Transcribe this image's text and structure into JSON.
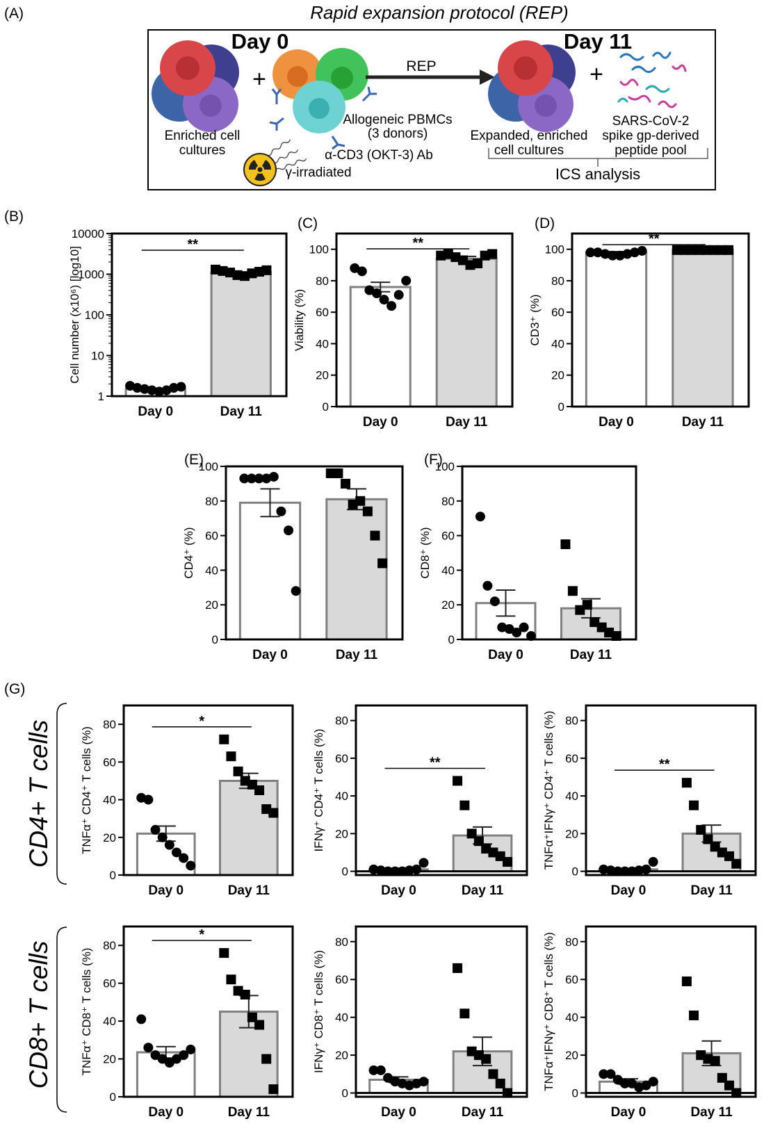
{
  "figure": {
    "panel_labels": [
      "(A)",
      "(B)",
      "(C)",
      "(D)",
      "(E)",
      "(F)",
      "(G)"
    ],
    "row_labels": [
      "CD4+ T cells",
      "CD8+ T cells"
    ]
  },
  "schematic": {
    "title": "Rapid expansion protocol (REP)",
    "day0": "Day 0",
    "day11": "Day 11",
    "plus1": "+",
    "plus2": "+",
    "arrow_label": "REP",
    "enriched": [
      "Enriched cell",
      "cultures"
    ],
    "allogeneic": [
      "Allogeneic PBMCs",
      "(3 donors)"
    ],
    "antibody": "α-CD3 (OKT-3) Ab",
    "irradiated": "γ-irradiated",
    "expanded": [
      "Expanded, enriched",
      "cell cultures"
    ],
    "spike": [
      "SARS-CoV-2",
      "spike gp-derived",
      "peptide pool"
    ],
    "ics": "ICS analysis"
  },
  "colors": {
    "cell_red": "#d9464a",
    "cell_navy": "#3f3f8f",
    "cell_blue": "#3e64a8",
    "cell_purple": "#8c68c6",
    "cell_orange": "#ef9240",
    "cell_green": "#42c25a",
    "cell_teal": "#6fd2d2",
    "antibody": "#3c64b4",
    "peptide_blue": "#2474c0",
    "peptide_magenta": "#c83c9c",
    "peptide_teal": "#28a8b0",
    "bar_day11": "#d9d9d9",
    "bar_edge": "#808080"
  },
  "chart_data": [
    {
      "id": "B",
      "type": "bar",
      "categories": [
        "Day 0",
        "Day 11"
      ],
      "yscale": "log",
      "ylim": [
        1,
        10000
      ],
      "yticks": [
        1,
        10,
        100,
        1000,
        10000
      ],
      "ylabel": "Cell number (x10⁶) [log10]",
      "xlabel": "",
      "values": [
        1.5,
        1100
      ],
      "sem": [
        0,
        0
      ],
      "points": [
        [
          1.8,
          1.6,
          1.5,
          1.4,
          1.3,
          1.4,
          1.6,
          1.7
        ],
        [
          1300,
          1200,
          1100,
          950,
          900,
          1050,
          1150,
          1250
        ]
      ],
      "significance": "**"
    },
    {
      "id": "C",
      "type": "bar",
      "categories": [
        "Day 0",
        "Day 11"
      ],
      "ylim": [
        0,
        110
      ],
      "yticks": [
        0,
        20,
        40,
        60,
        80,
        100
      ],
      "ylabel": "Viability (%)",
      "xlabel": "",
      "values": [
        76,
        94
      ],
      "sem": [
        3,
        1.5
      ],
      "points": [
        [
          88,
          86,
          74,
          72,
          68,
          64,
          71,
          80
        ],
        [
          96,
          97,
          95,
          93,
          90,
          91,
          96,
          97
        ]
      ],
      "significance": "**"
    },
    {
      "id": "D",
      "type": "bar",
      "categories": [
        "Day 0",
        "Day 11"
      ],
      "ylim": [
        0,
        110
      ],
      "yticks": [
        0,
        20,
        40,
        60,
        80,
        100
      ],
      "ylabel": "CD3⁺ (%)",
      "xlabel": "",
      "values": [
        98,
        99.5
      ],
      "sem": [
        0.5,
        0.2
      ],
      "points": [
        [
          98,
          98,
          97,
          96,
          96,
          97,
          98,
          99
        ],
        [
          99.5,
          99.5,
          99.5,
          99.5,
          99.5,
          99.5,
          99.5,
          99.5
        ]
      ],
      "significance": "**"
    },
    {
      "id": "E",
      "type": "bar",
      "categories": [
        "Day 0",
        "Day 11"
      ],
      "ylim": [
        0,
        100
      ],
      "yticks": [
        0,
        20,
        40,
        60,
        80,
        100
      ],
      "ylabel": "CD4⁺ (%)",
      "xlabel": "",
      "values": [
        79,
        81
      ],
      "sem": [
        8,
        6
      ],
      "points": [
        [
          93,
          93,
          93,
          93,
          94,
          74,
          63,
          28
        ],
        [
          96,
          96,
          90,
          78,
          80,
          74,
          60,
          44
        ]
      ],
      "significance": ""
    },
    {
      "id": "F",
      "type": "bar",
      "categories": [
        "Day 0",
        "Day 11"
      ],
      "ylim": [
        0,
        100
      ],
      "yticks": [
        0,
        20,
        40,
        60,
        80,
        100
      ],
      "ylabel": "CD8⁺ (%)",
      "xlabel": "",
      "values": [
        21,
        18
      ],
      "sem": [
        7.5,
        5.5
      ],
      "points": [
        [
          71,
          31,
          22,
          7,
          6,
          4,
          7,
          2
        ],
        [
          55,
          28,
          17,
          20,
          10,
          7,
          4,
          2
        ]
      ],
      "significance": ""
    },
    {
      "id": "G1",
      "type": "bar",
      "categories": [
        "Day 0",
        "Day 11"
      ],
      "ylim": [
        0,
        90
      ],
      "yticks": [
        0,
        20,
        40,
        60,
        80
      ],
      "ylabel": "TNFα⁺ CD4⁺ T cells (%)",
      "xlabel": "",
      "values": [
        22,
        50
      ],
      "sem": [
        4,
        4
      ],
      "points": [
        [
          41,
          40,
          24,
          20,
          16,
          12,
          9,
          5
        ],
        [
          72,
          63,
          55,
          50,
          48,
          45,
          35,
          33
        ]
      ],
      "significance": "*"
    },
    {
      "id": "G2",
      "type": "bar",
      "categories": [
        "Day 0",
        "Day 11"
      ],
      "ylim": [
        -2,
        88
      ],
      "yticks": [
        0,
        20,
        40,
        60,
        80
      ],
      "ylabel": "IFNγ⁺ CD4⁺ T cells (%)",
      "xlabel": "",
      "values": [
        1,
        19
      ],
      "sem": [
        0.6,
        4.5
      ],
      "points": [
        [
          1,
          0.5,
          0,
          0,
          0,
          0.5,
          1,
          4.5
        ],
        [
          48,
          35,
          20,
          16,
          12,
          10,
          8,
          5
        ]
      ],
      "significance": "**"
    },
    {
      "id": "G3",
      "type": "bar",
      "categories": [
        "Day 0",
        "Day 11"
      ],
      "ylim": [
        -2,
        88
      ],
      "yticks": [
        0,
        20,
        40,
        60,
        80
      ],
      "ylabel": "TNFα⁺IFNγ⁺ CD4⁺ T cells (%)",
      "xlabel": "",
      "values": [
        1,
        20
      ],
      "sem": [
        0.5,
        4.5
      ],
      "points": [
        [
          1,
          0.5,
          0,
          0,
          0,
          0.5,
          1,
          5
        ],
        [
          47,
          35,
          22,
          17,
          13,
          10,
          8,
          4
        ]
      ],
      "significance": "**"
    },
    {
      "id": "G4",
      "type": "bar",
      "categories": [
        "Day 0",
        "Day 11"
      ],
      "ylim": [
        0,
        90
      ],
      "yticks": [
        0,
        20,
        40,
        60,
        80
      ],
      "ylabel": "TNFα⁺ CD8⁺ T cells (%)",
      "xlabel": "",
      "values": [
        23.5,
        45
      ],
      "sem": [
        3,
        8.5
      ],
      "points": [
        [
          41,
          26,
          22,
          20,
          18,
          20,
          22,
          25
        ],
        [
          76,
          62,
          56,
          54,
          42,
          38,
          20,
          4
        ]
      ],
      "significance": "*"
    },
    {
      "id": "G5",
      "type": "bar",
      "categories": [
        "Day 0",
        "Day 11"
      ],
      "ylim": [
        -2,
        88
      ],
      "yticks": [
        0,
        20,
        40,
        60,
        80
      ],
      "ylabel": "IFNγ⁺ CD8⁺ T cells (%)",
      "xlabel": "",
      "values": [
        7,
        22
      ],
      "sem": [
        1.5,
        7.5
      ],
      "points": [
        [
          12,
          12,
          8,
          6,
          5,
          4,
          5,
          6
        ],
        [
          66,
          42,
          22,
          20,
          18,
          10,
          5,
          0
        ]
      ],
      "significance": ""
    },
    {
      "id": "G6",
      "type": "bar",
      "categories": [
        "Day 0",
        "Day 11"
      ],
      "ylim": [
        -2,
        88
      ],
      "yticks": [
        0,
        20,
        40,
        60,
        80
      ],
      "ylabel": "TNFα⁺IFNγ⁺ CD8⁺ T cells (%)",
      "xlabel": "",
      "values": [
        6,
        21
      ],
      "sem": [
        1.5,
        6.5
      ],
      "points": [
        [
          10,
          10,
          7,
          5,
          5,
          3,
          4,
          6
        ],
        [
          59,
          41,
          20,
          18,
          17,
          8,
          4,
          0
        ]
      ],
      "significance": ""
    }
  ]
}
